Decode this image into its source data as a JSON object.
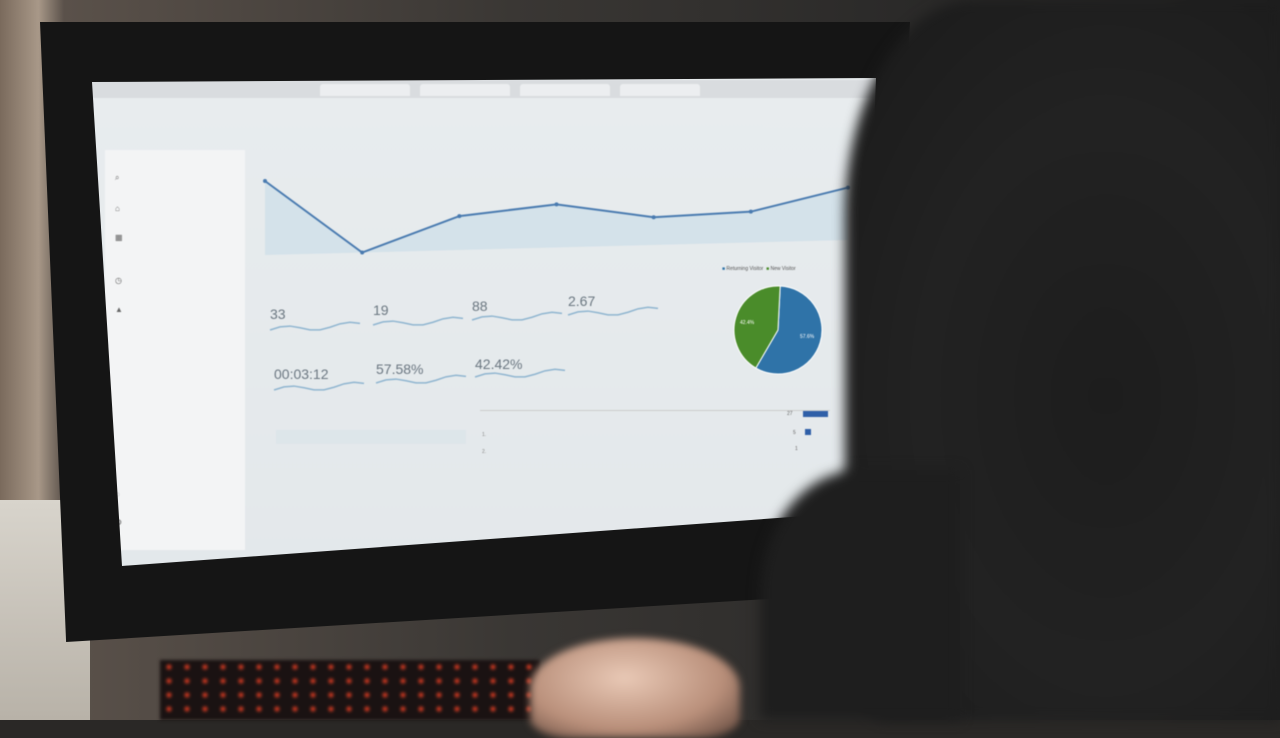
{
  "scene": {
    "description_colors": {
      "returning": "#2f73a8",
      "new": "#4a8c2a",
      "line": "#4a7bb0"
    }
  },
  "analytics": {
    "metrics": [
      {
        "value": "33"
      },
      {
        "value": "19"
      },
      {
        "value": "88"
      },
      {
        "value": "2.67"
      },
      {
        "value": "00:03:12"
      },
      {
        "value": "57.58%"
      },
      {
        "value": "42.42%"
      }
    ],
    "legend": {
      "returning": "Returning Visitor",
      "new": "New Visitor"
    },
    "pie_labels": {
      "new": "42.4%",
      "returning": "57.6%"
    },
    "table": {
      "rows": [
        {
          "rank": "",
          "value": "27"
        },
        {
          "rank": "1.",
          "value": "5"
        },
        {
          "rank": "2.",
          "value": "1"
        }
      ]
    }
  },
  "chart_data": [
    {
      "type": "line",
      "series": [
        {
          "values": [
            27,
            3,
            14,
            17,
            12,
            13,
            20
          ]
        }
      ],
      "grid": false
    },
    {
      "type": "pie",
      "categories": [
        "Returning Visitor",
        "New Visitor"
      ],
      "values": [
        57.6,
        42.4
      ],
      "colors": [
        "#2f73a8",
        "#4a8c2a"
      ],
      "legend": "top"
    }
  ]
}
